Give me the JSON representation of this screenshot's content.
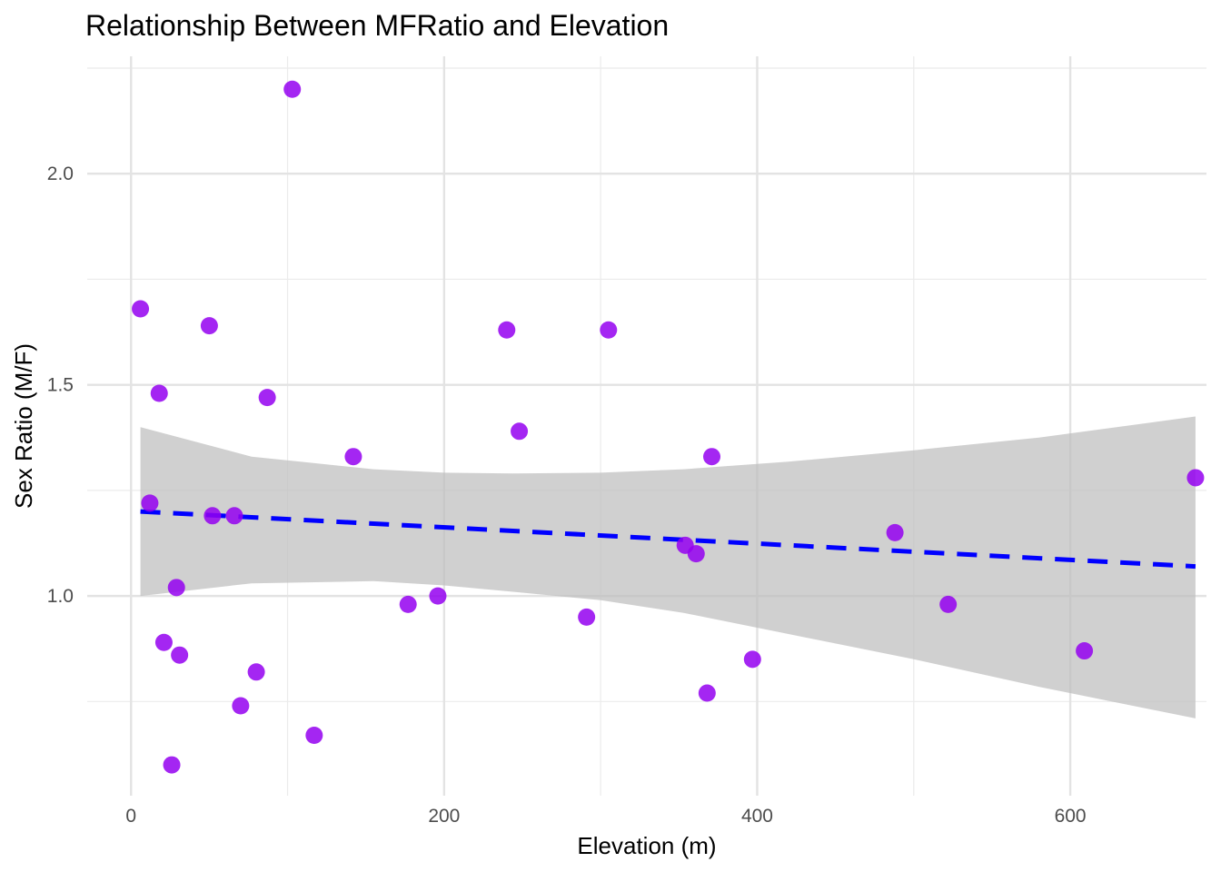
{
  "chart_data": {
    "type": "scatter",
    "title": "Relationship Between MFRatio and Elevation",
    "xlabel": "Elevation (m)",
    "ylabel": "Sex Ratio (M/F)",
    "xlim": [
      -28,
      687
    ],
    "ylim": [
      0.527,
      2.278
    ],
    "x_ticks": [
      0,
      200,
      400,
      600
    ],
    "x_tick_labels": [
      "0",
      "200",
      "400",
      "600"
    ],
    "x_minor_ticks": [
      100,
      300,
      500,
      700
    ],
    "y_ticks": [
      1.0,
      1.5,
      2.0
    ],
    "y_tick_labels": [
      "1.0",
      "1.5",
      "2.0"
    ],
    "y_minor_ticks": [
      0.75,
      1.25,
      1.75,
      2.25
    ],
    "grid": true,
    "point_color": "#9400F0",
    "points": [
      {
        "x": 6,
        "y": 1.68
      },
      {
        "x": 12,
        "y": 1.22
      },
      {
        "x": 18,
        "y": 1.48
      },
      {
        "x": 21,
        "y": 0.89
      },
      {
        "x": 26,
        "y": 0.6
      },
      {
        "x": 29,
        "y": 1.02
      },
      {
        "x": 31,
        "y": 0.86
      },
      {
        "x": 50,
        "y": 1.64
      },
      {
        "x": 52,
        "y": 1.19
      },
      {
        "x": 66,
        "y": 1.19
      },
      {
        "x": 70,
        "y": 0.74
      },
      {
        "x": 80,
        "y": 0.82
      },
      {
        "x": 87,
        "y": 1.47
      },
      {
        "x": 103,
        "y": 2.2
      },
      {
        "x": 117,
        "y": 0.67
      },
      {
        "x": 142,
        "y": 1.33
      },
      {
        "x": 177,
        "y": 0.98
      },
      {
        "x": 196,
        "y": 1.0
      },
      {
        "x": 240,
        "y": 1.63
      },
      {
        "x": 248,
        "y": 1.39
      },
      {
        "x": 291,
        "y": 0.95
      },
      {
        "x": 305,
        "y": 1.63
      },
      {
        "x": 354,
        "y": 1.12
      },
      {
        "x": 361,
        "y": 1.1
      },
      {
        "x": 368,
        "y": 0.77
      },
      {
        "x": 371,
        "y": 1.33
      },
      {
        "x": 397,
        "y": 0.85
      },
      {
        "x": 488,
        "y": 1.15
      },
      {
        "x": 522,
        "y": 0.98
      },
      {
        "x": 609,
        "y": 0.87
      },
      {
        "x": 680,
        "y": 1.28
      }
    ],
    "trend_line": {
      "style": "dashed",
      "color": "#0000FF",
      "x": [
        6,
        680
      ],
      "y": [
        1.2,
        1.07
      ]
    },
    "confidence_band": {
      "color": "#BEBEBE",
      "x": [
        6,
        77,
        155,
        200,
        244,
        300,
        353,
        420,
        500,
        580,
        680
      ],
      "upper": [
        1.4,
        1.33,
        1.3,
        1.292,
        1.29,
        1.292,
        1.3,
        1.318,
        1.345,
        1.375,
        1.425
      ],
      "lower": [
        1.0,
        1.03,
        1.035,
        1.025,
        1.01,
        0.99,
        0.96,
        0.91,
        0.85,
        0.785,
        0.71
      ]
    }
  }
}
